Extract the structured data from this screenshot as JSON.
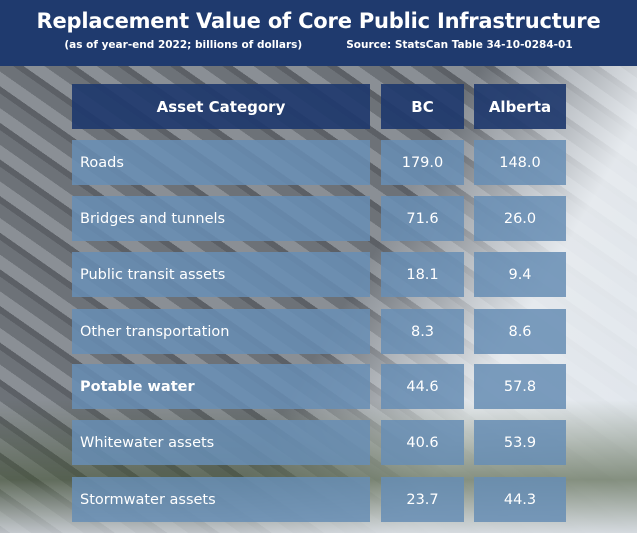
{
  "header": {
    "title": "Replacement Value of Core Public Infrastructure",
    "subtitle": "(as of year-end 2022; billions of dollars)",
    "source": "Source: StatsCan Table 34-10-0284-01"
  },
  "table": {
    "columns": [
      "Asset Category",
      "BC",
      "Alberta"
    ],
    "rows": [
      {
        "category": "Roads",
        "bc": "179.0",
        "alberta": "148.0"
      },
      {
        "category": "Bridges and tunnels",
        "bc": "71.6",
        "alberta": "26.0"
      },
      {
        "category": "Public transit assets",
        "bc": "18.1",
        "alberta": "9.4"
      },
      {
        "category": "Other transportation",
        "bc": "8.3",
        "alberta": "8.6"
      },
      {
        "category": "Potable water",
        "bc": "44.6",
        "alberta": "57.8"
      },
      {
        "category": "Whitewater assets",
        "bc": "40.6",
        "alberta": "53.9"
      },
      {
        "category": "Stormwater assets",
        "bc": "23.7",
        "alberta": "44.3"
      }
    ]
  },
  "colors": {
    "header": "#1f3a6e",
    "cell": "#688eb4"
  }
}
